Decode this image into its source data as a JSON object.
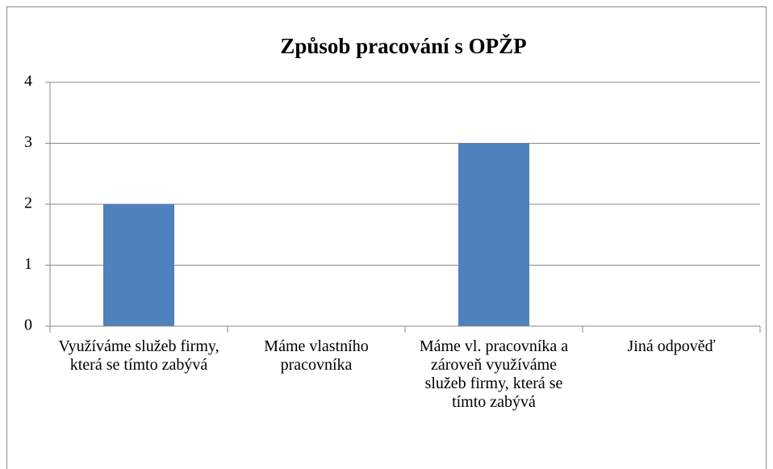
{
  "chart_data": {
    "type": "bar",
    "title": "Způsob pracování s OPŽP",
    "categories": [
      "Využíváme služeb firmy, která se tímto zabývá",
      "Máme vlastního pracovníka",
      "Máme vl. pracovníka a zároveň využíváme služeb firmy, která se tímto zabývá",
      "Jiná odpověď"
    ],
    "values": [
      2,
      0,
      3,
      0
    ],
    "color": "#4f81bd",
    "ylim": [
      0,
      4
    ],
    "yticks": [
      0,
      1,
      2,
      3,
      4
    ],
    "grid": true
  }
}
